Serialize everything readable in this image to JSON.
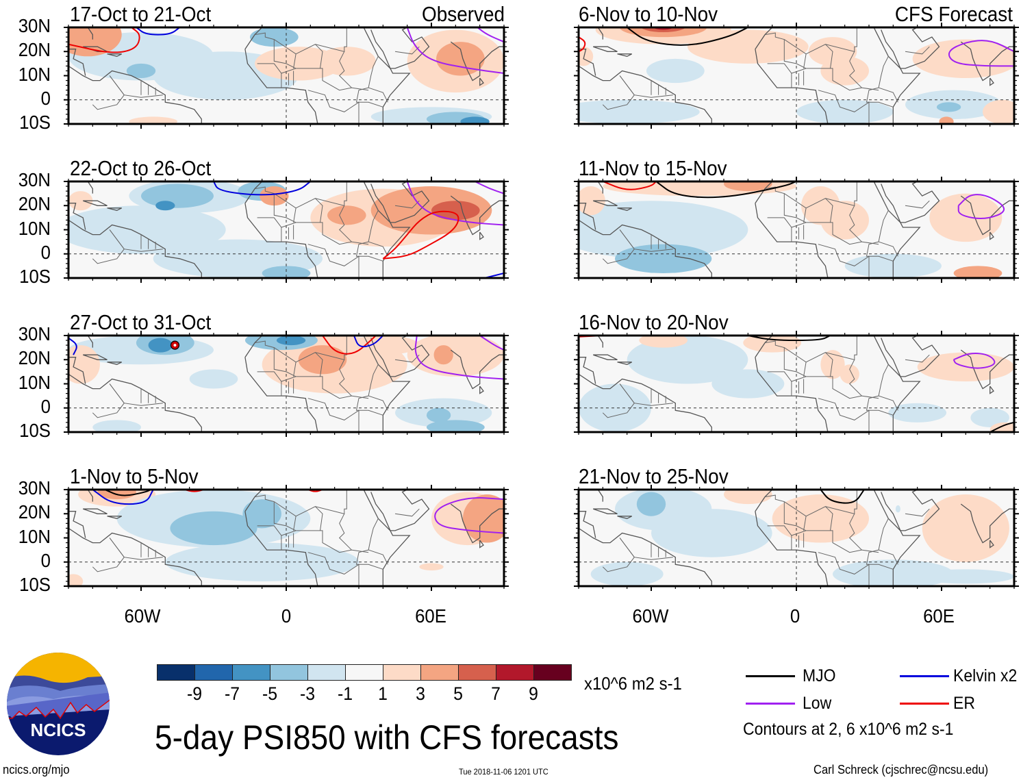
{
  "figure": {
    "title": "5-day PSI850 with CFS forecasts",
    "footer_left": "ncics.org/mjo",
    "footer_center": "Tue 2018-11-06 1201 UTC",
    "footer_right": "Carl Schreck (cjschrec@ncsu.edu)",
    "logo_text": "NCICS"
  },
  "chart_data": {
    "type": "heatmap",
    "title": "5-day PSI850 with CFS forecasts",
    "variable": "850-hPa streamfunction anomaly",
    "units": "x10^6 m2 s-1",
    "lon_range": [
      -90,
      90
    ],
    "lat_range": [
      -10,
      30
    ],
    "x_ticks": [
      "60W",
      "0",
      "60E"
    ],
    "y_ticks": [
      "30N",
      "20N",
      "10N",
      "0",
      "10S"
    ],
    "color_levels": [
      -9,
      -7,
      -5,
      -3,
      -1,
      1,
      3,
      5,
      7,
      9
    ],
    "color_labels": [
      "-9",
      "-7",
      "-5",
      "-3",
      "-1",
      "1",
      "3",
      "5",
      "7",
      "9"
    ],
    "colors": [
      "#08306b",
      "#2166ac",
      "#4393c3",
      "#92c5de",
      "#d1e5f0",
      "#f7f7f7",
      "#fddbc7",
      "#f4a582",
      "#d6604d",
      "#b2182b",
      "#67001f"
    ],
    "contour_note": "Contours at 2, 6 x10^6 m2 s-1",
    "legend": [
      {
        "name": "MJO",
        "color": "#000000"
      },
      {
        "name": "Kelvin x2",
        "color": "#0000dd"
      },
      {
        "name": "Low",
        "color": "#a020f0"
      },
      {
        "name": "ER",
        "color": "#ee0000"
      }
    ],
    "columns": [
      {
        "tag": "Observed",
        "panels": [
          {
            "title": "17-Oct to 21-Oct"
          },
          {
            "title": "22-Oct to 26-Oct"
          },
          {
            "title": "27-Oct to 31-Oct"
          },
          {
            "title": "1-Nov to 5-Nov"
          }
        ]
      },
      {
        "tag": "CFS Forecast",
        "panels": [
          {
            "title": "6-Nov to 10-Nov"
          },
          {
            "title": "11-Nov to 15-Nov"
          },
          {
            "title": "16-Nov to 20-Nov"
          },
          {
            "title": "21-Nov to 25-Nov"
          }
        ]
      }
    ]
  }
}
